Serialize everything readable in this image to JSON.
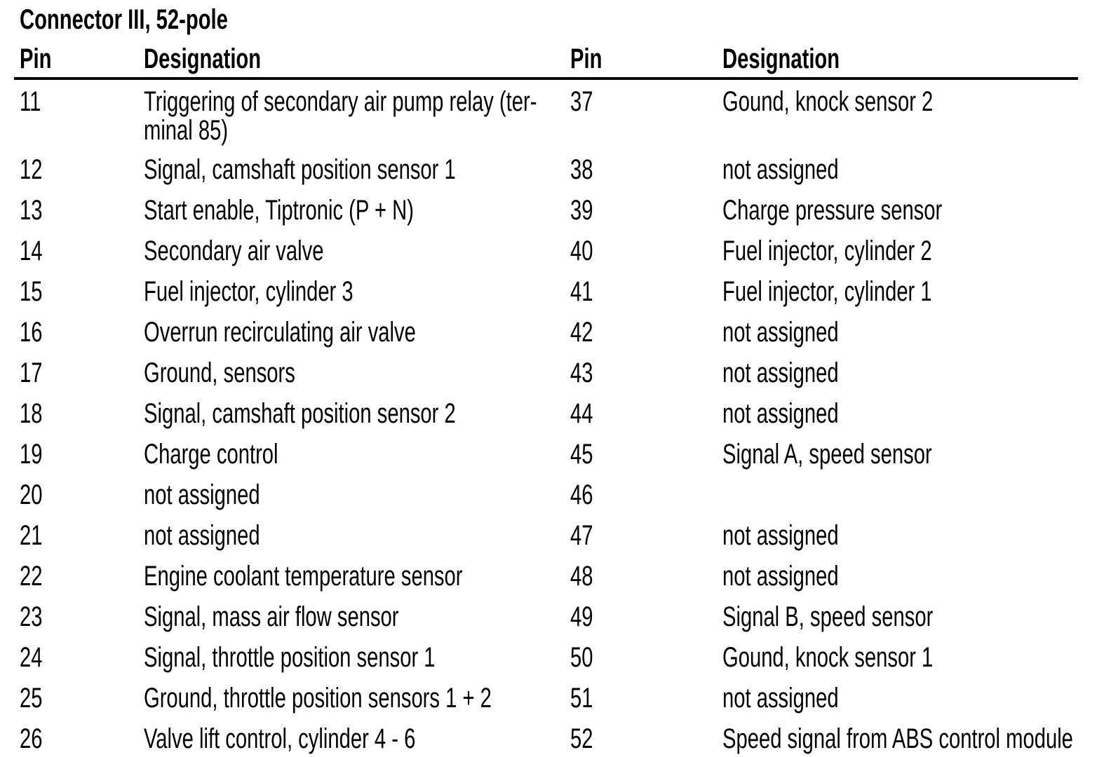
{
  "title": "Connector III, 52-pole",
  "colors": {
    "text": "#000000",
    "background": "#ffffff",
    "rule": "#000000"
  },
  "table": {
    "pin_header": "Pin",
    "designation_header": "Designation",
    "left_rows": [
      {
        "pin": "11",
        "designation": "Triggering of secondary air pump relay (ter-\nminal 85)"
      },
      {
        "pin": "12",
        "designation": "Signal, camshaft position sensor 1"
      },
      {
        "pin": "13",
        "designation": "Start enable, Tiptronic (P + N)"
      },
      {
        "pin": "14",
        "designation": "Secondary air valve"
      },
      {
        "pin": "15",
        "designation": "Fuel injector, cylinder 3"
      },
      {
        "pin": "16",
        "designation": "Overrun recirculating air valve"
      },
      {
        "pin": "17",
        "designation": "Ground, sensors"
      },
      {
        "pin": "18",
        "designation": "Signal, camshaft position sensor 2"
      },
      {
        "pin": "19",
        "designation": "Charge control"
      },
      {
        "pin": "20",
        "designation": "not assigned"
      },
      {
        "pin": "21",
        "designation": "not assigned"
      },
      {
        "pin": "22",
        "designation": "Engine coolant temperature sensor"
      },
      {
        "pin": "23",
        "designation": "Signal, mass air flow sensor"
      },
      {
        "pin": "24",
        "designation": "Signal, throttle position sensor 1"
      },
      {
        "pin": "25",
        "designation": "Ground, throttle position sensors 1 + 2"
      },
      {
        "pin": "26",
        "designation": "Valve lift control, cylinder 4 - 6"
      }
    ],
    "right_rows": [
      {
        "pin": "37",
        "designation": "Gound, knock sensor 2"
      },
      {
        "pin": "38",
        "designation": "not assigned"
      },
      {
        "pin": "39",
        "designation": "Charge pressure sensor"
      },
      {
        "pin": "40",
        "designation": "Fuel injector, cylinder 2"
      },
      {
        "pin": "41",
        "designation": "Fuel injector, cylinder 1"
      },
      {
        "pin": "42",
        "designation": "not assigned"
      },
      {
        "pin": "43",
        "designation": "not assigned"
      },
      {
        "pin": "44",
        "designation": "not assigned"
      },
      {
        "pin": "45",
        "designation": "Signal A, speed sensor"
      },
      {
        "pin": "46",
        "designation": ""
      },
      {
        "pin": "47",
        "designation": "not assigned"
      },
      {
        "pin": "48",
        "designation": "not assigned"
      },
      {
        "pin": "49",
        "designation": "Signal B, speed sensor"
      },
      {
        "pin": "50",
        "designation": "Gound, knock sensor 1"
      },
      {
        "pin": "51",
        "designation": "not assigned"
      },
      {
        "pin": "52",
        "designation": "Speed signal from ABS control module"
      }
    ]
  }
}
